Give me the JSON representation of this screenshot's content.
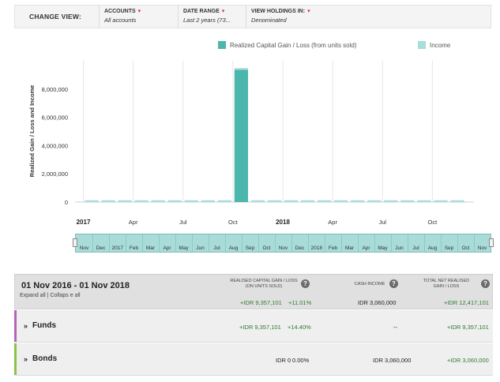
{
  "filters": {
    "title": "CHANGE VIEW:",
    "accounts": {
      "label": "ACCOUNTS",
      "value": "All accounts"
    },
    "date_range": {
      "label": "DATE RANGE",
      "value": "Last 2 years (73..."
    },
    "holdings": {
      "label": "VIEW HOLDINGS IN:",
      "value": "Denominated"
    }
  },
  "colors": {
    "realized": "#4db6ac",
    "income": "#a8ded9",
    "funds_accent": "#b565b8",
    "bonds_accent": "#8bc34a",
    "positive": "#2e7d32"
  },
  "chart_data": {
    "type": "bar",
    "ylabel": "Realized Gain / Loss and Income",
    "ylim": [
      0,
      10000000
    ],
    "yticks": [
      0,
      2000000,
      4000000,
      6000000,
      8000000
    ],
    "ytick_labels": [
      "0",
      "2,000,000",
      "4,000,000",
      "6,000,000",
      "8,000,000"
    ],
    "legend_position": "top-right",
    "categories": [
      "Nov 2016",
      "Dec 2016",
      "Jan 2017",
      "Feb 2017",
      "Mar 2017",
      "Apr 2017",
      "May 2017",
      "Jun 2017",
      "Jul 2017",
      "Aug 2017",
      "Sep 2017",
      "Oct 2017",
      "Nov 2017",
      "Dec 2017",
      "Jan 2018",
      "Feb 2018",
      "Mar 2018",
      "Apr 2018",
      "May 2018",
      "Jun 2018",
      "Jul 2018",
      "Aug 2018",
      "Sep 2018"
    ],
    "series": [
      {
        "name": "Realized Capital Gain / Loss (from units sold)",
        "values": [
          0,
          0,
          0,
          0,
          0,
          0,
          0,
          0,
          0,
          9357101,
          0,
          0,
          0,
          0,
          0,
          0,
          0,
          0,
          0,
          0,
          0,
          0,
          0
        ]
      },
      {
        "name": "Income",
        "values": [
          127500,
          127500,
          127500,
          127500,
          127500,
          127500,
          127500,
          127500,
          127500,
          127500,
          127500,
          127500,
          127500,
          127500,
          127500,
          127500,
          127500,
          127500,
          127500,
          127500,
          127500,
          127500,
          127500
        ]
      }
    ],
    "x_tick_labels": [
      {
        "label": "2017",
        "bold": true
      },
      {
        "label": "Apr",
        "bold": false
      },
      {
        "label": "Jul",
        "bold": false
      },
      {
        "label": "Oct",
        "bold": false
      },
      {
        "label": "2018",
        "bold": true
      },
      {
        "label": "Apr",
        "bold": false
      },
      {
        "label": "Jul",
        "bold": false
      },
      {
        "label": "Oct",
        "bold": false
      }
    ],
    "x_tick_positions": [
      2,
      5,
      8,
      11,
      14,
      17,
      20,
      23
    ]
  },
  "navigator": {
    "labels": [
      "Nov",
      "Dec",
      "2017",
      "Feb",
      "Mar",
      "Apr",
      "May",
      "Jun",
      "Jul",
      "Aug",
      "Sep",
      "Oct",
      "Nov",
      "Dec",
      "2018",
      "Feb",
      "Mar",
      "Apr",
      "May",
      "Jun",
      "Jul",
      "Aug",
      "Sep",
      "Oct",
      "Nov"
    ]
  },
  "summary": {
    "period": "01 Nov 2016 - 01 Nov 2018",
    "expand_all": "Expand all",
    "separator": "|",
    "collapse_all": "Collaps e all",
    "col_realised": "REALISED CAPITAL GAIN / LOSS (ON UNITS SOLD)",
    "col_cash": "CASH INCOME",
    "col_total": "TOTAL NET REALISED GAIN / LOSS",
    "realised_value": "+IDR 9,357,101",
    "realised_pct": "+11.01%",
    "cash_value": "IDR 3,060,000",
    "total_value": "+IDR 12,417,101"
  },
  "rows": [
    {
      "label": "Funds",
      "realised_value": "+IDR 9,357,101",
      "realised_pct": "+14.40%",
      "cash_value": "--",
      "total_value": "+IDR 9,357,101"
    },
    {
      "label": "Bonds",
      "realised_value": "IDR 0",
      "realised_pct": "0.00%",
      "cash_value": "IDR 3,060,000",
      "total_value": "+IDR 3,060,000"
    }
  ]
}
